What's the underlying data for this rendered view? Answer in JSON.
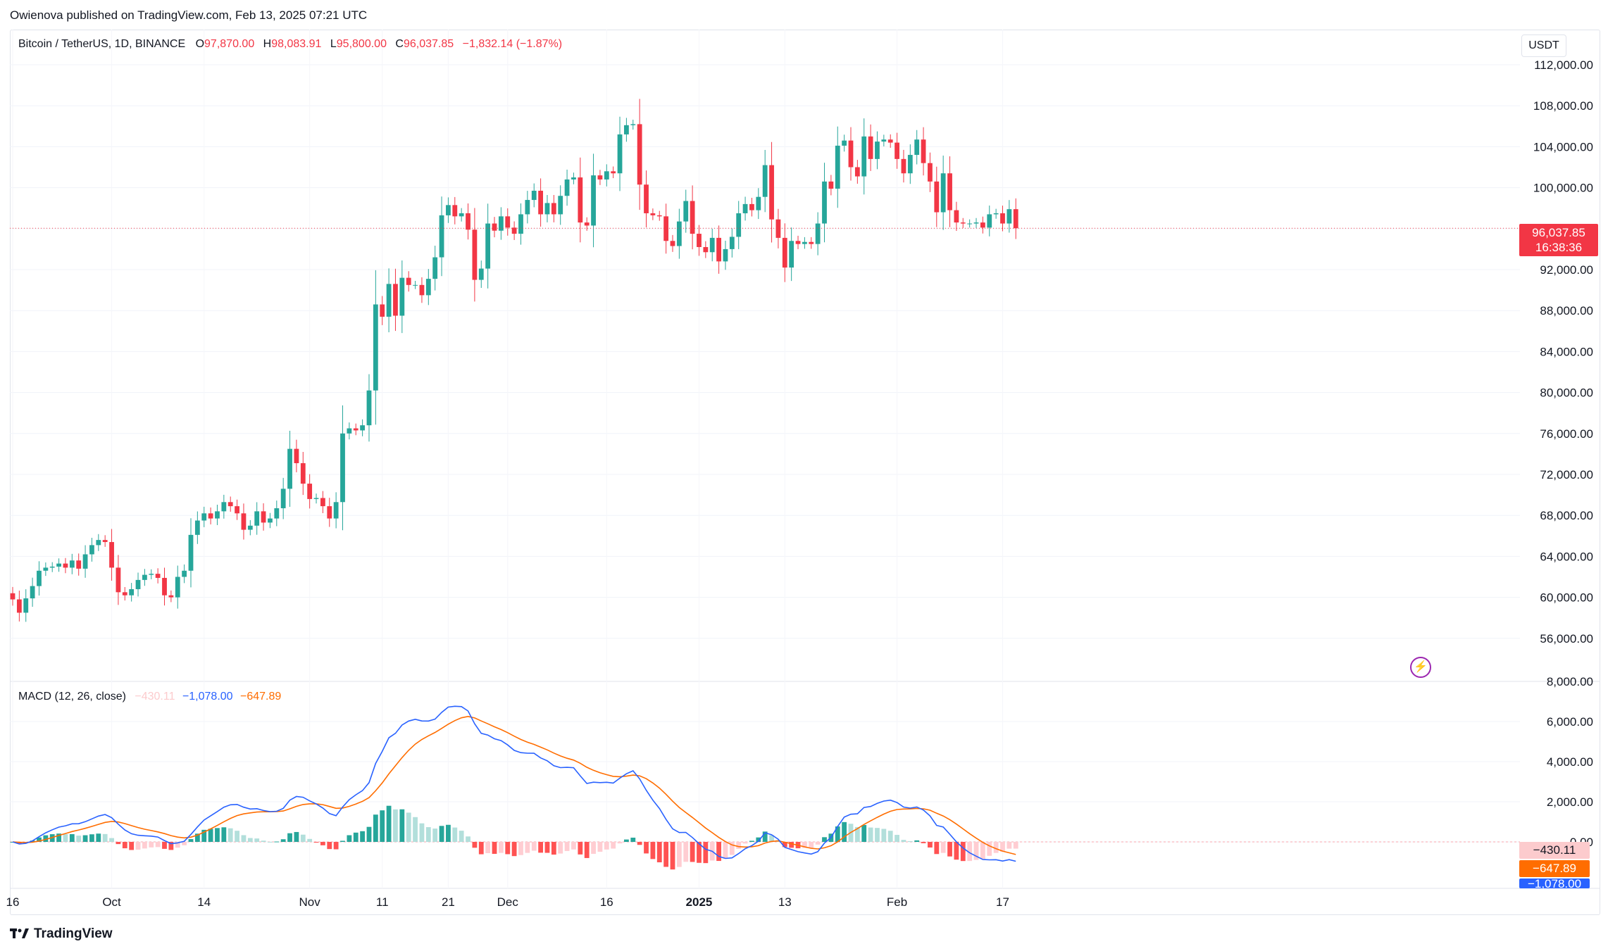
{
  "attribution": "Owienova published on TradingView.com, Feb 13, 2025 07:21 UTC",
  "legend": {
    "symbol": "Bitcoin / TetherUS, 1D, BINANCE",
    "open_label": "O",
    "open": "97,870.00",
    "high_label": "H",
    "high": "98,083.91",
    "low_label": "L",
    "low": "95,800.00",
    "close_label": "C",
    "close": "96,037.85",
    "change": "−1,832.14 (−1.87%)"
  },
  "currency": "USDT",
  "last_price": {
    "price": "96,037.85",
    "countdown": "16:38:36"
  },
  "macd_legend": {
    "title": "MACD (12, 26, close)",
    "histogram": "−430.11",
    "macd": "−1,078.00",
    "signal": "−647.89"
  },
  "macd_badges": {
    "histogram": "−430.11",
    "signal": "−647.89",
    "macd": "−1,078.00"
  },
  "footer": {
    "logo_text": "TradingView"
  },
  "colors": {
    "up": "#26a69a",
    "down": "#f23645",
    "macd": "#2962ff",
    "signal": "#ff6d00",
    "hist_up_strong": "#26a69a",
    "hist_up_weak": "#b2dfdb",
    "hist_down_strong": "#ff5252",
    "hist_down_weak": "#ffcdd2"
  },
  "chart_data": [
    {
      "type": "candlestick",
      "title": "Bitcoin / TetherUS, 1D, BINANCE",
      "ylim": [
        52000,
        114000
      ],
      "y_ticks": [
        "112,000.00",
        "108,000.00",
        "104,000.00",
        "100,000.00",
        "96,000.00",
        "92,000.00",
        "88,000.00",
        "84,000.00",
        "80,000.00",
        "76,000.00",
        "72,000.00",
        "68,000.00",
        "64,000.00",
        "60,000.00",
        "56,000.00"
      ],
      "x_ticks": [
        "16",
        "Oct",
        "14",
        "Nov",
        "11",
        "21",
        "Dec",
        "16",
        "2025",
        "13",
        "Feb",
        "17"
      ],
      "closes": [
        59800,
        58500,
        59900,
        61100,
        62600,
        62900,
        63000,
        63300,
        62900,
        63600,
        62800,
        64200,
        65100,
        65600,
        65400,
        62900,
        60500,
        60200,
        60800,
        61700,
        62200,
        62300,
        61900,
        60200,
        60000,
        62000,
        62600,
        66100,
        67500,
        68200,
        67700,
        68400,
        69300,
        68900,
        68200,
        66600,
        67000,
        68400,
        67300,
        67700,
        68700,
        70600,
        74500,
        73100,
        71100,
        69600,
        69700,
        68900,
        67700,
        69300,
        76000,
        76500,
        76300,
        76800,
        80200,
        88600,
        87400,
        90600,
        87500,
        91200,
        90500,
        90500,
        89500,
        91100,
        93200,
        97300,
        98300,
        97200,
        97500,
        95900,
        91000,
        92100,
        96500,
        95800,
        97200,
        96100,
        95500,
        97400,
        98800,
        99700,
        97400,
        98500,
        97400,
        99200,
        100800,
        101000,
        96600,
        96300,
        101200,
        100800,
        101600,
        101400,
        105200,
        106100,
        106200,
        100300,
        97500,
        97300,
        97200,
        94800,
        94300,
        96700,
        98700,
        95500,
        94200,
        93700,
        95100,
        92800,
        94000,
        95200,
        97500,
        98400,
        97800,
        99100,
        102200,
        96900,
        95100,
        92200,
        94800,
        94500,
        94700,
        94500,
        96500,
        100600,
        99900,
        104100,
        104600,
        102000,
        101100,
        105000,
        102800,
        104500,
        104700,
        104400,
        102800,
        101400,
        103200,
        104700,
        102400,
        100600,
        97600,
        101400,
        97800,
        96600,
        96500,
        96500,
        96600,
        96100,
        97400,
        97500,
        96500,
        97900,
        96038
      ]
    },
    {
      "type": "line",
      "title": "MACD (12, 26, close)",
      "ylim": [
        -2000,
        8000
      ],
      "y_ticks": [
        "8,000.00",
        "6,000.00",
        "4,000.00",
        "2,000.00",
        "0.00"
      ],
      "series": [
        {
          "name": "MACD",
          "values": []
        },
        {
          "name": "Signal",
          "values": []
        },
        {
          "name": "Histogram",
          "values": []
        }
      ]
    }
  ]
}
